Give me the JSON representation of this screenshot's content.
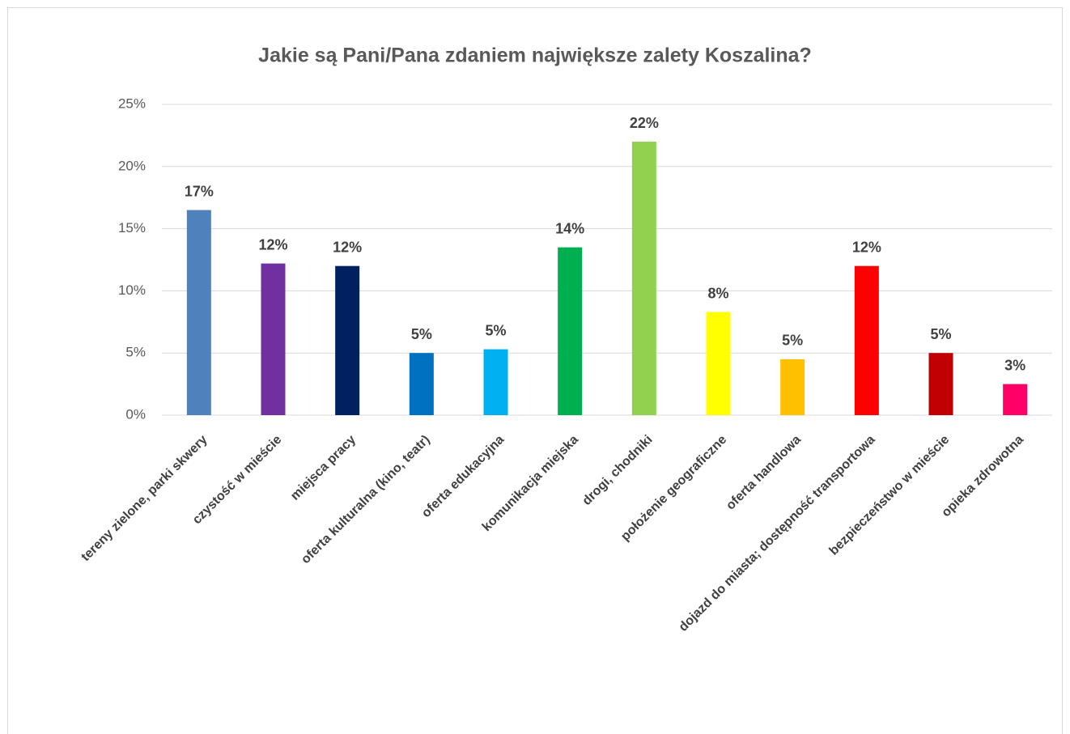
{
  "chart_data": {
    "type": "bar",
    "title": "Jakie są Pani/Pana zdaniem największe zalety Koszalina?",
    "categories": [
      "tereny zielone, parki skwery",
      "czystość w mieście",
      "miejsca pracy",
      "oferta kulturalna (kino, teatr)",
      "oferta edukacyjna",
      "komunikacja miejska",
      "drogi, chodniki",
      "położenie geograficzne",
      "oferta handlowa",
      "dojazd do miasta; dostępność transportowa",
      "bezpieczeństwo w mieście",
      "opieka zdrowotna"
    ],
    "values": [
      16.5,
      12.2,
      12.0,
      5.0,
      5.3,
      13.5,
      22.0,
      8.3,
      4.5,
      12.0,
      5.0,
      2.5
    ],
    "value_labels": [
      "17%",
      "12%",
      "12%",
      "5%",
      "5%",
      "14%",
      "22%",
      "8%",
      "5%",
      "12%",
      "5%",
      "3%"
    ],
    "colors": [
      "#4f81bd",
      "#7030a0",
      "#002060",
      "#0070c0",
      "#00b0f0",
      "#00b050",
      "#92d050",
      "#ffff00",
      "#ffc000",
      "#ff0000",
      "#c00000",
      "#ff0066"
    ],
    "ylim": [
      0,
      25
    ],
    "yticks": [
      {
        "value": 0,
        "label": "0%"
      },
      {
        "value": 5,
        "label": "5%"
      },
      {
        "value": 10,
        "label": "10%"
      },
      {
        "value": 15,
        "label": "15%"
      },
      {
        "value": 20,
        "label": "20%"
      },
      {
        "value": 25,
        "label": "25%"
      }
    ],
    "grid": true
  }
}
